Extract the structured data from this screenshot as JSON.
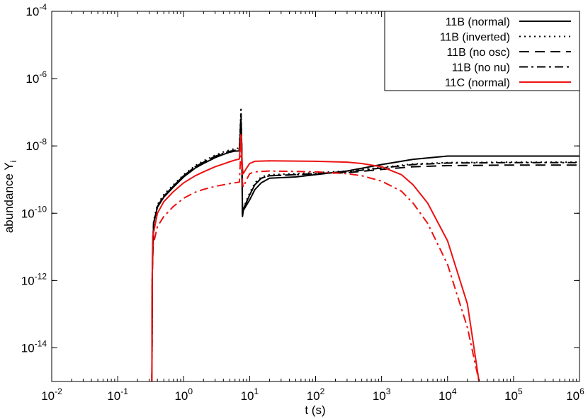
{
  "chart_data": {
    "type": "line",
    "xlabel": "t (s)",
    "ylabel": "abundance Y",
    "ylabel_subscript": "i",
    "xscale": "log",
    "yscale": "log",
    "xlim": [
      0.01,
      1000000
    ],
    "ylim": [
      1e-15,
      0.0001
    ],
    "x_ticks": [
      {
        "base": "10",
        "exp": "-2",
        "value": 0.01
      },
      {
        "base": "10",
        "exp": "-1",
        "value": 0.1
      },
      {
        "base": "10",
        "exp": "0",
        "value": 1
      },
      {
        "base": "10",
        "exp": "1",
        "value": 10
      },
      {
        "base": "10",
        "exp": "2",
        "value": 100
      },
      {
        "base": "10",
        "exp": "3",
        "value": 1000
      },
      {
        "base": "10",
        "exp": "4",
        "value": 10000
      },
      {
        "base": "10",
        "exp": "5",
        "value": 100000
      },
      {
        "base": "10",
        "exp": "6",
        "value": 1000000
      }
    ],
    "y_ticks": [
      {
        "base": "10",
        "exp": "-14",
        "value": 1e-14
      },
      {
        "base": "10",
        "exp": "-12",
        "value": 1e-12
      },
      {
        "base": "10",
        "exp": "-10",
        "value": 1e-10
      },
      {
        "base": "10",
        "exp": "-8",
        "value": 1e-08
      },
      {
        "base": "10",
        "exp": "-6",
        "value": 1e-06
      },
      {
        "base": "10",
        "exp": "-4",
        "value": 0.0001
      }
    ],
    "legend_position": "top-right",
    "grid": false,
    "series": [
      {
        "name": "11B (normal)",
        "color": "#000000",
        "dash": "solid",
        "points": [
          [
            0.33,
            1e-15
          ],
          [
            0.335,
            2e-12
          ],
          [
            0.35,
            5e-11
          ],
          [
            0.4,
            1.5e-10
          ],
          [
            0.5,
            3e-10
          ],
          [
            0.7,
            6e-10
          ],
          [
            1,
            1.2e-09
          ],
          [
            1.5,
            2.2e-09
          ],
          [
            2,
            3e-09
          ],
          [
            3,
            4.5e-09
          ],
          [
            4,
            5.6e-09
          ],
          [
            5,
            6.5e-09
          ],
          [
            6,
            7e-09
          ],
          [
            7,
            7.1e-09
          ],
          [
            7.4,
            5e-08
          ],
          [
            7.6,
            7e-09
          ],
          [
            7.8,
            8e-11
          ],
          [
            8,
            1.2e-10
          ],
          [
            10,
            2.5e-10
          ],
          [
            12,
            5e-10
          ],
          [
            15,
            8e-10
          ],
          [
            20,
            1.1e-09
          ],
          [
            50,
            1.2e-09
          ],
          [
            100,
            1.4e-09
          ],
          [
            300,
            1.8e-09
          ],
          [
            1000,
            2.8e-09
          ],
          [
            3000,
            4e-09
          ],
          [
            10000,
            5e-09
          ],
          [
            100000,
            5e-09
          ],
          [
            1000000,
            5e-09
          ]
        ]
      },
      {
        "name": "11B (inverted)",
        "color": "#000000",
        "dash": "dotted",
        "points": [
          [
            0.33,
            1e-15
          ],
          [
            0.335,
            2.5e-12
          ],
          [
            0.35,
            6e-11
          ],
          [
            0.4,
            1.8e-10
          ],
          [
            0.5,
            3.6e-10
          ],
          [
            0.7,
            7e-10
          ],
          [
            1,
            1.4e-09
          ],
          [
            1.5,
            2.6e-09
          ],
          [
            2,
            3.6e-09
          ],
          [
            3,
            5.3e-09
          ],
          [
            4,
            6.6e-09
          ],
          [
            5,
            7.6e-09
          ],
          [
            6,
            8.3e-09
          ],
          [
            7,
            8.6e-09
          ],
          [
            7.4,
            1.4e-07
          ],
          [
            7.6,
            9e-09
          ],
          [
            7.8,
            1e-10
          ],
          [
            8,
            1.4e-10
          ],
          [
            10,
            4e-10
          ],
          [
            12,
            8e-10
          ],
          [
            15,
            1.2e-09
          ],
          [
            20,
            1.4e-09
          ],
          [
            50,
            1.5e-09
          ],
          [
            100,
            1.6e-09
          ],
          [
            300,
            1.8e-09
          ],
          [
            1000,
            2.3e-09
          ],
          [
            3000,
            2.9e-09
          ],
          [
            10000,
            3.2e-09
          ],
          [
            100000,
            3.3e-09
          ],
          [
            1000000,
            3.3e-09
          ]
        ]
      },
      {
        "name": "11B (no osc)",
        "color": "#000000",
        "dash": "dashed",
        "points": [
          [
            0.33,
            1e-15
          ],
          [
            0.335,
            2e-12
          ],
          [
            0.35,
            5e-11
          ],
          [
            0.4,
            1.6e-10
          ],
          [
            0.5,
            3.2e-10
          ],
          [
            0.7,
            6.4e-10
          ],
          [
            1,
            1.3e-09
          ],
          [
            1.5,
            2.4e-09
          ],
          [
            2,
            3.3e-09
          ],
          [
            3,
            4.9e-09
          ],
          [
            4,
            6e-09
          ],
          [
            5,
            6.9e-09
          ],
          [
            6,
            7.4e-09
          ],
          [
            7,
            7.6e-09
          ],
          [
            7.4,
            9e-08
          ],
          [
            7.6,
            8e-09
          ],
          [
            7.8,
            9e-11
          ],
          [
            8,
            1.3e-10
          ],
          [
            10,
            3.5e-10
          ],
          [
            12,
            7e-10
          ],
          [
            15,
            1.1e-09
          ],
          [
            20,
            1.3e-09
          ],
          [
            50,
            1.4e-09
          ],
          [
            100,
            1.5e-09
          ],
          [
            300,
            1.6e-09
          ],
          [
            1000,
            2e-09
          ],
          [
            3000,
            2.4e-09
          ],
          [
            10000,
            2.6e-09
          ],
          [
            100000,
            2.7e-09
          ],
          [
            1000000,
            2.7e-09
          ]
        ]
      },
      {
        "name": "11B (no nu)",
        "color": "#000000",
        "dash": "dashdot",
        "points": [
          [
            0.33,
            1e-15
          ],
          [
            0.335,
            2e-12
          ],
          [
            0.35,
            5e-11
          ],
          [
            0.4,
            1.6e-10
          ],
          [
            0.5,
            3.2e-10
          ],
          [
            0.7,
            6.4e-10
          ],
          [
            1,
            1.3e-09
          ],
          [
            1.5,
            2.4e-09
          ],
          [
            2,
            3.3e-09
          ],
          [
            3,
            4.9e-09
          ],
          [
            4,
            6e-09
          ],
          [
            5,
            6.9e-09
          ],
          [
            6,
            7.4e-09
          ],
          [
            7,
            7.6e-09
          ],
          [
            7.4,
            8e-08
          ],
          [
            7.6,
            8e-09
          ],
          [
            7.8,
            9e-11
          ],
          [
            8,
            1.3e-10
          ],
          [
            10,
            3.5e-10
          ],
          [
            12,
            7e-10
          ],
          [
            15,
            1.1e-09
          ],
          [
            20,
            1.3e-09
          ],
          [
            50,
            1.4e-09
          ],
          [
            100,
            1.5e-09
          ],
          [
            300,
            1.7e-09
          ],
          [
            1000,
            2.2e-09
          ],
          [
            3000,
            2.8e-09
          ],
          [
            10000,
            3.1e-09
          ],
          [
            100000,
            3.2e-09
          ],
          [
            1000000,
            3.2e-09
          ]
        ]
      },
      {
        "name": "11C (normal)",
        "color": "#ee1111",
        "dash": "solid",
        "points": [
          [
            0.33,
            1e-15
          ],
          [
            0.333,
            1e-12
          ],
          [
            0.34,
            2e-11
          ],
          [
            0.4,
            1e-10
          ],
          [
            0.5,
            2.2e-10
          ],
          [
            0.7,
            4.4e-10
          ],
          [
            1,
            8e-10
          ],
          [
            1.5,
            1.3e-09
          ],
          [
            2,
            1.7e-09
          ],
          [
            3,
            2.4e-09
          ],
          [
            4,
            2.9e-09
          ],
          [
            5,
            3.4e-09
          ],
          [
            6,
            3.8e-09
          ],
          [
            7,
            4.1e-09
          ],
          [
            7.4,
            2.2e-08
          ],
          [
            7.8,
            2e-09
          ],
          [
            8,
            1.5e-09
          ],
          [
            9,
            2.2e-09
          ],
          [
            10,
            3e-09
          ],
          [
            12,
            3.5e-09
          ],
          [
            20,
            3.6e-09
          ],
          [
            100,
            3.5e-09
          ],
          [
            300,
            3.3e-09
          ],
          [
            500,
            3e-09
          ],
          [
            1000,
            2.4e-09
          ],
          [
            2000,
            1.4e-09
          ],
          [
            3000,
            7e-10
          ],
          [
            5000,
            2e-10
          ],
          [
            10000,
            1.5e-11
          ],
          [
            20000,
            2e-13
          ],
          [
            30000,
            1e-15
          ]
        ]
      },
      {
        "name": "",
        "color": "#ee1111",
        "dash": "dashdot",
        "points": [
          [
            0.33,
            1e-15
          ],
          [
            0.333,
            1e-12
          ],
          [
            0.34,
            1e-11
          ],
          [
            0.4,
            4e-11
          ],
          [
            0.5,
            8e-11
          ],
          [
            0.7,
            1.6e-10
          ],
          [
            1,
            2.8e-10
          ],
          [
            1.5,
            4.2e-10
          ],
          [
            2,
            5.1e-10
          ],
          [
            3,
            6.3e-10
          ],
          [
            4,
            7e-10
          ],
          [
            5,
            7.6e-10
          ],
          [
            6,
            8e-10
          ],
          [
            7,
            8.4e-10
          ],
          [
            7.4,
            9e-09
          ],
          [
            7.8,
            8e-10
          ],
          [
            8,
            6e-10
          ],
          [
            9,
            1e-09
          ],
          [
            10,
            1.5e-09
          ],
          [
            12,
            1.7e-09
          ],
          [
            20,
            1.8e-09
          ],
          [
            100,
            1.7e-09
          ],
          [
            300,
            1.5e-09
          ],
          [
            500,
            1.3e-09
          ],
          [
            1000,
            9e-10
          ],
          [
            2000,
            4.5e-10
          ],
          [
            3000,
            2e-10
          ],
          [
            5000,
            5e-11
          ],
          [
            10000,
            3e-12
          ],
          [
            20000,
            4e-14
          ],
          [
            30000,
            1e-15
          ]
        ]
      }
    ]
  }
}
